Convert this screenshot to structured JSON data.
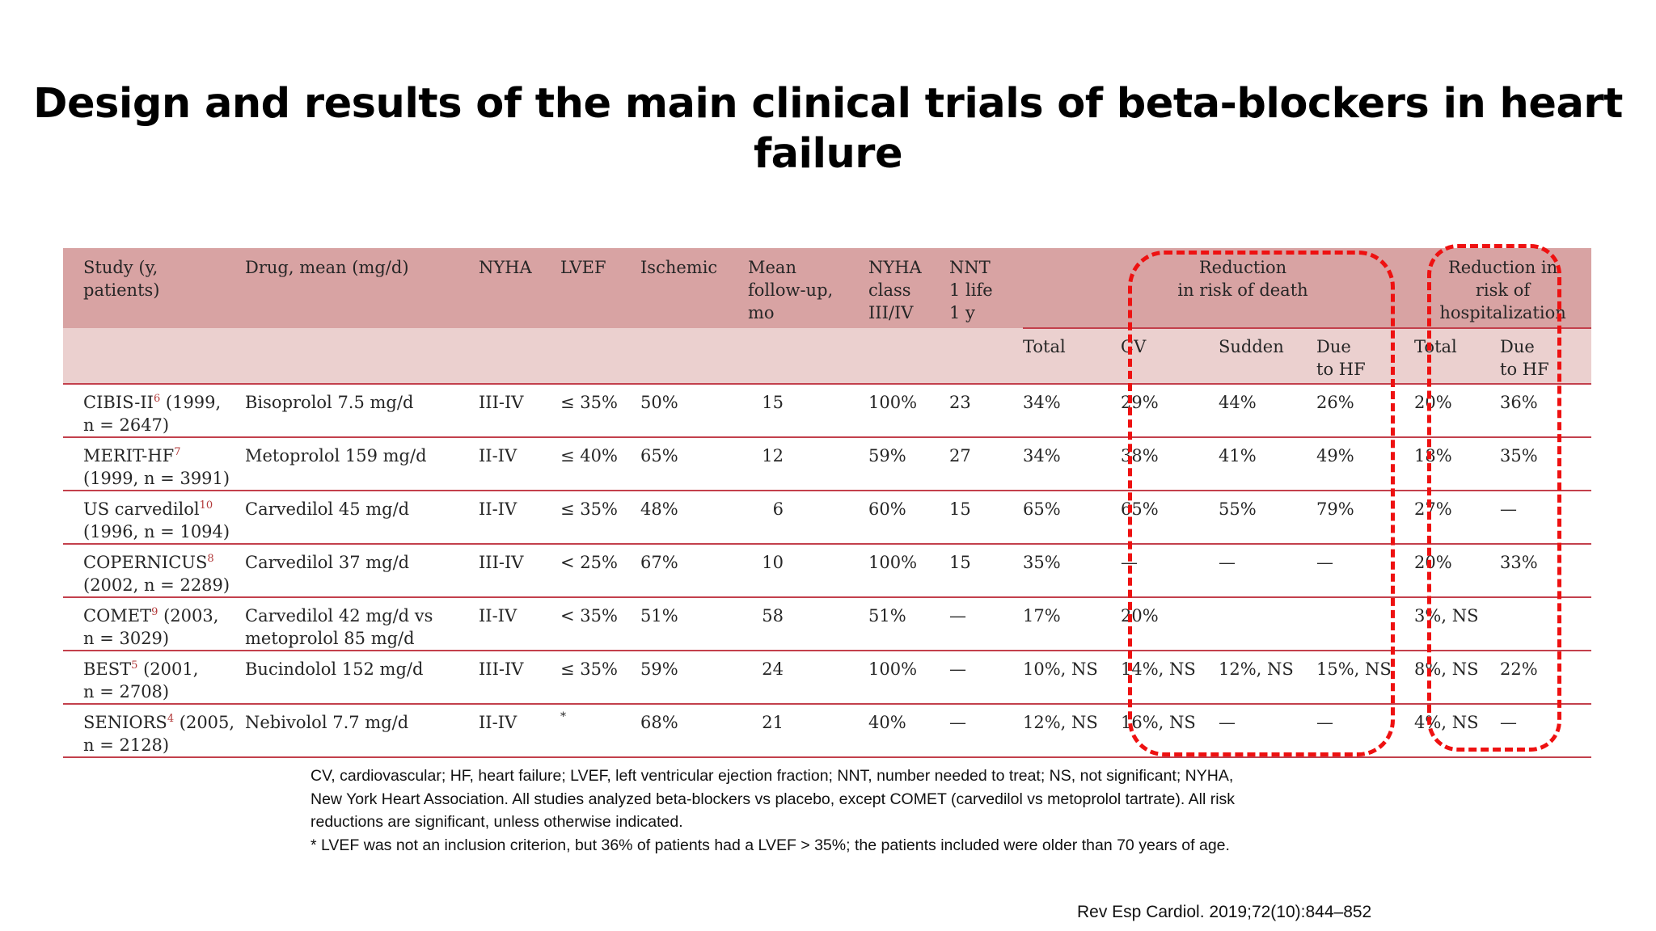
{
  "title": "Design and results of the main clinical trials of beta-blockers in heart failure",
  "table": {
    "headers": {
      "study": [
        "Study (y,",
        "patients)"
      ],
      "drug": [
        "Drug, mean (mg/d)"
      ],
      "nyha": [
        "NYHA"
      ],
      "lvef": [
        "LVEF"
      ],
      "ischemic": [
        "Ischemic"
      ],
      "followup": [
        "Mean",
        "follow-up,",
        "mo"
      ],
      "nyha_class": [
        "NYHA",
        "class",
        "III/IV"
      ],
      "nnt": [
        "NNT",
        "1 life",
        "1 y"
      ],
      "death_group": [
        "Reduction",
        "in risk of death"
      ],
      "hosp_group": [
        "Reduction in",
        "risk of",
        "hospitalization"
      ],
      "death_sub": {
        "total": "Total",
        "cv": "CV",
        "sudden": "Sudden",
        "due_hf": [
          "Due",
          "to HF"
        ]
      },
      "hosp_sub": {
        "total": "Total",
        "due_hf": [
          "Due",
          "to HF"
        ]
      }
    },
    "rows": [
      {
        "study_name": "CIBIS-II",
        "ref": "6",
        "study_rest": " (1999,",
        "study_line2": "n = 2647)",
        "drug": [
          "Bisoprolol 7.5 mg/d"
        ],
        "nyha": "III-IV",
        "lvef": "≤ 35%",
        "ischemic": "50%",
        "followup": "15",
        "nyha_class": "100%",
        "nnt": "23",
        "total": "34%",
        "cv": "29%",
        "sudden": "44%",
        "due_hf": "26%",
        "hosp_total": "20%",
        "hosp_due_hf": "36%"
      },
      {
        "study_name": "MERIT-HF",
        "ref": "7",
        "study_rest": "",
        "study_line2": "(1999, n = 3991)",
        "drug": [
          "Metoprolol 159 mg/d"
        ],
        "nyha": "II-IV",
        "lvef": "≤ 40%",
        "ischemic": "65%",
        "followup": "12",
        "nyha_class": "59%",
        "nnt": "27",
        "total": "34%",
        "cv": "38%",
        "sudden": "41%",
        "due_hf": "49%",
        "hosp_total": "18%",
        "hosp_due_hf": "35%"
      },
      {
        "study_name": "US carvedilol",
        "ref": "10",
        "study_rest": "",
        "study_line2": "(1996, n = 1094)",
        "drug": [
          "Carvedilol 45 mg/d"
        ],
        "nyha": "II-IV",
        "lvef": "≤ 35%",
        "ischemic": "48%",
        "followup": "6",
        "nyha_class": "60%",
        "nnt": "15",
        "total": "65%",
        "cv": "65%",
        "sudden": "55%",
        "due_hf": "79%",
        "hosp_total": "27%",
        "hosp_due_hf": "—"
      },
      {
        "study_name": "COPERNICUS",
        "ref": "8",
        "study_rest": "",
        "study_line2": "(2002, n = 2289)",
        "drug": [
          "Carvedilol 37 mg/d"
        ],
        "nyha": "III-IV",
        "lvef": "< 25%",
        "ischemic": "67%",
        "followup": "10",
        "nyha_class": "100%",
        "nnt": "15",
        "total": "35%",
        "cv": "—",
        "sudden": "—",
        "due_hf": "—",
        "hosp_total": "20%",
        "hosp_due_hf": "33%"
      },
      {
        "study_name": "COMET",
        "ref": "9",
        "study_rest": " (2003,",
        "study_line2": "n = 3029)",
        "drug": [
          "Carvedilol 42 mg/d vs",
          "metoprolol 85 mg/d"
        ],
        "nyha": "II-IV",
        "lvef": "< 35%",
        "ischemic": "51%",
        "followup": "58",
        "nyha_class": "51%",
        "nnt": "—",
        "total": "17%",
        "cv": "20%",
        "sudden": "",
        "due_hf": "",
        "hosp_total": "3%, NS",
        "hosp_due_hf": ""
      },
      {
        "study_name": "BEST",
        "ref": "5",
        "study_rest": " (2001,",
        "study_line2": "n = 2708)",
        "drug": [
          "Bucindolol 152 mg/d"
        ],
        "nyha": "III-IV",
        "lvef": "≤ 35%",
        "ischemic": "59%",
        "followup": "24",
        "nyha_class": "100%",
        "nnt": "—",
        "total": "10%, NS",
        "cv": "14%, NS",
        "sudden": "12%, NS",
        "due_hf": "15%, NS",
        "hosp_total": "8%, NS",
        "hosp_due_hf": "22%"
      },
      {
        "study_name": "SENIORS",
        "ref": "4",
        "study_rest": " (2005,",
        "study_line2": "n = 2128)",
        "drug": [
          "Nebivolol 7.7 mg/d"
        ],
        "nyha": "II-IV",
        "lvef": "*",
        "ischemic": "68%",
        "followup": "21",
        "nyha_class": "40%",
        "nnt": "—",
        "total": "12%, NS",
        "cv": "16%, NS",
        "sudden": "—",
        "due_hf": "—",
        "hosp_total": "4%, NS",
        "hosp_due_hf": "—"
      }
    ]
  },
  "footnote": [
    "CV, cardiovascular; HF, heart failure; LVEF, left ventricular ejection fraction; NNT, number needed to treat; NS, not significant; NYHA,",
    "New York Heart Association. All studies analyzed beta-blockers vs placebo, except COMET (carvedilol vs metoprolol tartrate). All risk",
    "reductions are significant, unless otherwise indicated.",
    "* LVEF was not an inclusion criterion, but 36% of patients had a LVEF > 35%; the patients included were older than 70 years of age."
  ],
  "citation": "Rev Esp Cardiol. 2019;72(10):844–852",
  "colors": {
    "header_dark": "#d8a3a3",
    "header_light": "#ebd0cf",
    "rule": "#c3404c",
    "highlight_dash": "#ee1111"
  }
}
